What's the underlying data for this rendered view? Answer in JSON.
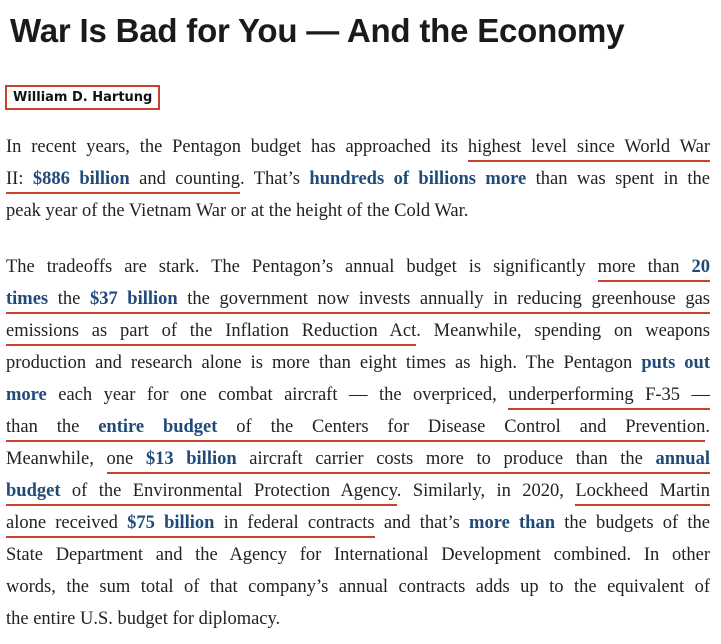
{
  "article": {
    "title": "War Is Bad for You — And the Economy",
    "author": "William D. Hartung",
    "accent_color": "#c8412c",
    "link_color": "#1f4a7a",
    "paragraphs": [
      [
        [
          {
            "t": "In recent years, the Pentagon budget has approached its "
          },
          {
            "t": "highest level since World War",
            "u": true
          }
        ],
        [
          {
            "t": "II: ",
            "u": true
          },
          {
            "t": "$886 billion",
            "k": true,
            "u": true
          },
          {
            "t": " and counting",
            "u": true
          },
          {
            "t": ". That’s "
          },
          {
            "t": "hundreds of billions more",
            "k": true
          },
          {
            "t": " than was spent in the"
          }
        ],
        [
          {
            "t": "peak year of the Vietnam War or at the height of the Cold War."
          }
        ]
      ],
      [
        [
          {
            "t": "The tradeoffs are stark. The Pentagon’s annual budget is significantly "
          },
          {
            "t": "more than ",
            "u": true
          },
          {
            "t": "20",
            "k": true,
            "u": true
          }
        ],
        [
          {
            "t": "times",
            "k": true,
            "u": true
          },
          {
            "t": " the ",
            "u": true
          },
          {
            "t": "$37 billion",
            "k": true,
            "u": true
          },
          {
            "t": " the government now invests annually in reducing greenhouse gas",
            "u": true
          }
        ],
        [
          {
            "t": "emissions as part of the Inflation Reduction Act",
            "u": true
          },
          {
            "t": ". Meanwhile, spending on weapons"
          }
        ],
        [
          {
            "t": "production and research alone is more than eight times as high. The Pentagon "
          },
          {
            "t": "puts out",
            "k": true
          }
        ],
        [
          {
            "t": "more",
            "k": true
          },
          {
            "t": " each year for one combat aircraft — the overpriced, "
          },
          {
            "t": "underperforming F-35 —",
            "u": true
          }
        ],
        [
          {
            "t": "than the ",
            "u": true
          },
          {
            "t": "entire budget",
            "k": true,
            "u": true
          },
          {
            "t": " of the Centers for Disease Control and Prevention",
            "u": true
          },
          {
            "t": "."
          }
        ],
        [
          {
            "t": "Meanwhile, "
          },
          {
            "t": "one ",
            "u": true
          },
          {
            "t": "$13 billion",
            "k": true,
            "u": true
          },
          {
            "t": " aircraft carrier costs more to produce than the ",
            "u": true
          },
          {
            "t": "annual",
            "k": true,
            "u": true
          }
        ],
        [
          {
            "t": "budget",
            "k": true,
            "u": true
          },
          {
            "t": " of the Environmental Protection Agency",
            "u": true
          },
          {
            "t": ". Similarly, in 2020, "
          },
          {
            "t": "Lockheed Martin",
            "u": true
          }
        ],
        [
          {
            "t": "alone received ",
            "u": true
          },
          {
            "t": "$75 billion",
            "k": true,
            "u": true
          },
          {
            "t": " in federal contracts",
            "u": true
          },
          {
            "t": " and that’s "
          },
          {
            "t": "more than",
            "k": true
          },
          {
            "t": " the budgets of the"
          }
        ],
        [
          {
            "t": "State Department and the Agency for International Development combined. In other"
          }
        ],
        [
          {
            "t": "words, the sum total of that company’s annual contracts adds up to the equivalent of"
          }
        ],
        [
          {
            "t": "the entire U.S. budget for diplomacy."
          }
        ]
      ]
    ]
  }
}
